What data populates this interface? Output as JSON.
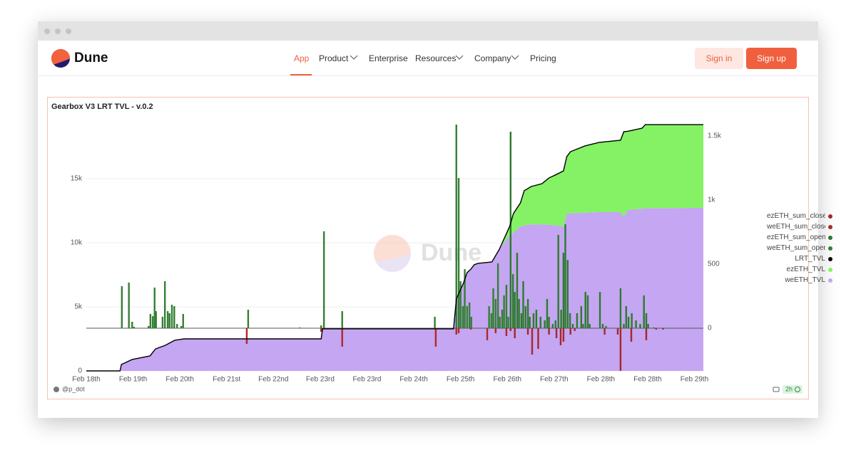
{
  "nav": {
    "brand": "Dune",
    "links": [
      "App",
      "Product",
      "Enterprise",
      "Resources",
      "Company",
      "Pricing"
    ],
    "sign_in": "Sign in",
    "sign_up": "Sign up"
  },
  "chart_data": {
    "type": "combo",
    "title": "Gearbox V3 LRT TVL - v.0.2",
    "watermark": "Dune",
    "author": "@p_dot",
    "age": "2h",
    "xlim": [
      0,
      13.19
    ],
    "xticks": [
      {
        "value": 0,
        "label": "Feb 18th"
      },
      {
        "value": 1,
        "label": "Feb 19th"
      },
      {
        "value": 2,
        "label": "Feb 20th"
      },
      {
        "value": 3,
        "label": "Feb 21st"
      },
      {
        "value": 4,
        "label": "Feb 22nd"
      },
      {
        "value": 5,
        "label": "Feb 23rd"
      },
      {
        "value": 6,
        "label": "Feb 23rd"
      },
      {
        "value": 7,
        "label": "Feb 24th"
      },
      {
        "value": 8,
        "label": "Feb 25th"
      },
      {
        "value": 9,
        "label": "Feb 26th"
      },
      {
        "value": 10,
        "label": "Feb 27th"
      },
      {
        "value": 11,
        "label": "Feb 28th"
      },
      {
        "value": 12,
        "label": "Feb 28th"
      },
      {
        "value": 13,
        "label": "Feb 29th"
      }
    ],
    "ylim": [
      0,
      19500
    ],
    "yticks": [
      0,
      {
        "value": 5000,
        "label": "5k"
      },
      {
        "value": 10000,
        "label": "10k"
      },
      {
        "value": 15000,
        "label": "15k"
      }
    ],
    "y2lim": [
      -333.33,
      1616.67
    ],
    "y2ticks": [
      0,
      500,
      {
        "value": 1000,
        "label": "1k"
      },
      {
        "value": 1500,
        "label": "1.5k"
      }
    ],
    "grid": true,
    "legend": "right",
    "stacked_areas": true,
    "series": [
      {
        "name": "ezETH_sum_close",
        "type": "bar",
        "axis": "y2",
        "color": "#a8262a",
        "x": [
          9.07,
          9.16,
          9.44,
          9.53,
          9.66,
          9.89,
          10.05,
          10.14,
          10.2,
          10.35,
          10.44,
          11.08,
          11.36,
          11.42,
          11.65,
          11.97,
          12.18,
          12.33
        ],
        "values": [
          -22,
          -78,
          -50,
          -206,
          -161,
          -50,
          -78,
          -133,
          -106,
          -50,
          -22,
          -50,
          -50,
          -333,
          -106,
          -94,
          -11,
          -11
        ]
      },
      {
        "name": "weETH_sum_close",
        "type": "bar",
        "axis": "y2",
        "color": "#b3262a",
        "x": [
          3.43,
          5.02,
          5.47,
          7.47,
          7.91,
          7.96,
          8.22,
          8.57,
          8.75,
          8.98
        ],
        "values": [
          -122,
          -28,
          -144,
          -144,
          -50,
          -39,
          -11,
          -94,
          -39,
          -61
        ]
      },
      {
        "name": "ezETH_sum_open",
        "type": "bar",
        "axis": "y2",
        "color": "#2e7a2e",
        "x": [
          9.07,
          9.12,
          9.16,
          9.21,
          9.25,
          9.3,
          9.34,
          9.39,
          9.44,
          9.48,
          9.56,
          9.62,
          9.71,
          9.8,
          9.85,
          9.89,
          9.97,
          10.03,
          10.09,
          10.15,
          10.2,
          10.24,
          10.29,
          10.34,
          10.4,
          10.49,
          10.58,
          10.62,
          10.67,
          10.72,
          10.76,
          10.98,
          11.04,
          11.11,
          11.42,
          11.49,
          11.54,
          11.59,
          11.66,
          11.75,
          11.84,
          11.92,
          11.97,
          12.01,
          12.13
        ],
        "values": [
          1533,
          422,
          283,
          589,
          228,
          117,
          367,
          172,
          228,
          89,
          117,
          144,
          89,
          61,
          228,
          89,
          33,
          61,
          728,
          144,
          589,
          811,
          533,
          117,
          33,
          117,
          172,
          33,
          283,
          256,
          33,
          283,
          33,
          17,
          311,
          33,
          172,
          89,
          117,
          61,
          33,
          256,
          117,
          33,
          6
        ]
      },
      {
        "name": "weETH_sum_open",
        "type": "bar",
        "axis": "y2",
        "color": "#347f34",
        "x": [
          0.76,
          0.91,
          0.98,
          1.02,
          1.33,
          1.37,
          1.42,
          1.46,
          1.49,
          1.63,
          1.68,
          1.74,
          1.78,
          1.83,
          1.88,
          1.94,
          2.03,
          2.07,
          3.46,
          4.56,
          5.02,
          5.08,
          5.47,
          7.45,
          7.91,
          7.96,
          8.0,
          8.05,
          8.09,
          8.14,
          8.19,
          8.23,
          8.61,
          8.66,
          8.7,
          8.75,
          8.8,
          8.84,
          8.89,
          8.93,
          8.98,
          9.02
        ],
        "values": [
          328,
          356,
          50,
          11,
          17,
          111,
          94,
          317,
          133,
          89,
          367,
          133,
          117,
          183,
          172,
          33,
          17,
          111,
          144,
          6,
          22,
          756,
          133,
          89,
          1589,
          1172,
          367,
          172,
          461,
          172,
          200,
          89,
          172,
          117,
          311,
          228,
          506,
          89,
          144,
          256,
          339,
          89
        ]
      },
      {
        "name": "LRT_TVL",
        "type": "line",
        "color": "#000000",
        "x": [
          0,
          0.72,
          0.75,
          0.98,
          1.36,
          1.48,
          1.69,
          1.89,
          2.09,
          5.02,
          5.05,
          7.85,
          7.91,
          7.99,
          8.06,
          8.14,
          8.22,
          8.29,
          8.37,
          8.67,
          8.83,
          9.05,
          9.13,
          9.28,
          9.36,
          9.51,
          9.74,
          9.89,
          10.05,
          10.2,
          10.27,
          10.35,
          10.66,
          10.96,
          11.42,
          11.49,
          11.57,
          11.88,
          11.95,
          13.19
        ],
        "values": [
          0,
          0,
          500,
          890,
          1170,
          1720,
          2000,
          2390,
          2500,
          2500,
          3280,
          3280,
          5610,
          6280,
          6830,
          7670,
          7940,
          8280,
          8390,
          8500,
          9500,
          11280,
          12280,
          13110,
          14060,
          14390,
          14610,
          15060,
          15330,
          15610,
          16720,
          17110,
          17560,
          17830,
          18000,
          18670,
          18700,
          18940,
          19220,
          19220
        ]
      },
      {
        "name": "ezETH_TVL",
        "type": "area",
        "color": "#84f264",
        "x": [
          0,
          0.72,
          0.75,
          0.98,
          1.36,
          1.48,
          1.69,
          1.89,
          2.09,
          5.02,
          5.05,
          7.85,
          7.91,
          7.99,
          8.06,
          8.14,
          8.22,
          8.29,
          8.37,
          8.67,
          8.83,
          9.05,
          9.13,
          9.28,
          9.36,
          9.51,
          9.74,
          9.89,
          10.05,
          10.2,
          10.27,
          10.35,
          10.66,
          10.96,
          11.42,
          11.49,
          11.57,
          11.88,
          11.95,
          13.19
        ],
        "values": [
          0,
          0,
          0,
          0,
          0,
          0,
          0,
          0,
          0,
          0,
          0,
          0,
          0,
          0,
          0,
          0,
          0,
          0,
          0,
          0,
          0,
          670,
          1480,
          1830,
          2710,
          2950,
          3170,
          3660,
          3980,
          4330,
          4440,
          4810,
          5210,
          5440,
          5610,
          6670,
          6140,
          6290,
          6520,
          6500
        ]
      },
      {
        "name": "weETH_TVL",
        "type": "area",
        "color": "#c4a6f2",
        "x": [
          0,
          0.72,
          0.75,
          0.98,
          1.36,
          1.48,
          1.69,
          1.89,
          2.09,
          5.02,
          5.05,
          7.85,
          7.91,
          7.99,
          8.06,
          8.14,
          8.22,
          8.29,
          8.37,
          8.67,
          8.83,
          9.05,
          9.13,
          9.28,
          9.36,
          9.51,
          9.74,
          9.89,
          10.05,
          10.2,
          10.27,
          10.35,
          10.66,
          10.96,
          11.42,
          11.49,
          11.57,
          11.88,
          11.95,
          13.19
        ],
        "values": [
          0,
          0,
          500,
          890,
          1170,
          1720,
          2000,
          2390,
          2500,
          2500,
          3280,
          3280,
          5610,
          6280,
          6830,
          7670,
          7940,
          8280,
          8390,
          8500,
          9500,
          10610,
          10800,
          11280,
          11350,
          11440,
          11440,
          11400,
          11350,
          11280,
          12280,
          12300,
          12350,
          12390,
          12390,
          12000,
          12560,
          12650,
          12700,
          12720
        ]
      }
    ]
  }
}
